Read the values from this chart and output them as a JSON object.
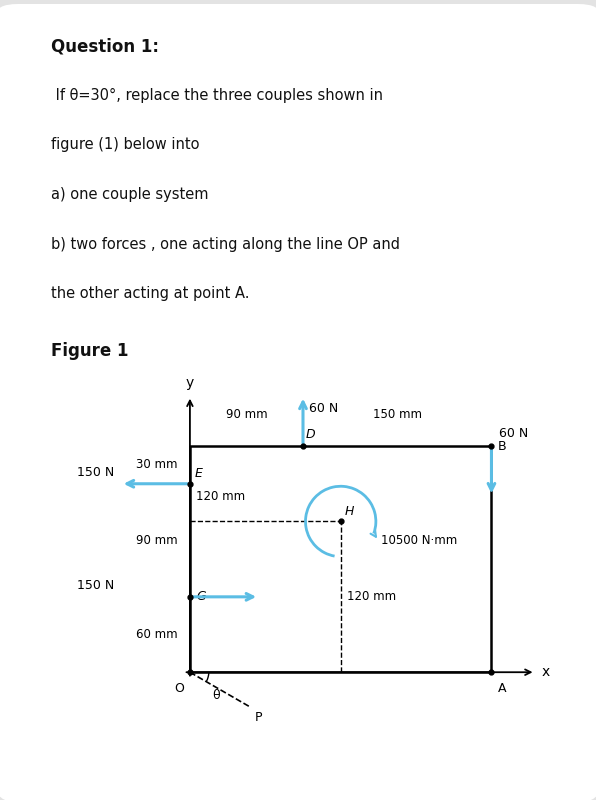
{
  "bg_color": "#e3e3e3",
  "card_color": "#ffffff",
  "question_title": "Question 1:",
  "question_line1": " If θ=30°, replace the three couples shown in",
  "question_line2": "figure (1) below into",
  "question_line3": "a) one couple system",
  "question_line4": "b) two forces , one acting along the line OP and",
  "question_line5": "the other acting at point A.",
  "figure_label": "Figure 1",
  "arrow_color": "#5bbde4",
  "rect_color": "#000000",
  "dim_moment": "10500 N·mm",
  "dim_90mm_top": "90 mm",
  "dim_150mm_top": "150 mm",
  "dim_30mm": "30 mm",
  "dim_90mm": "90 mm",
  "dim_60mm": "60 mm",
  "dim_120mm_h": "120 mm",
  "dim_120mm_v": "120 mm",
  "label_150N_E": "150 N",
  "label_150N_G": "150 N",
  "label_60N_up": "60 N",
  "label_60N_dn": "60 N",
  "label_O": "O",
  "label_A": "A",
  "label_B": "B",
  "label_D": "D",
  "label_E": "E",
  "label_G": "G",
  "label_H": "H",
  "label_x": "x",
  "label_y": "y",
  "label_theta": "θ",
  "label_P": "P"
}
